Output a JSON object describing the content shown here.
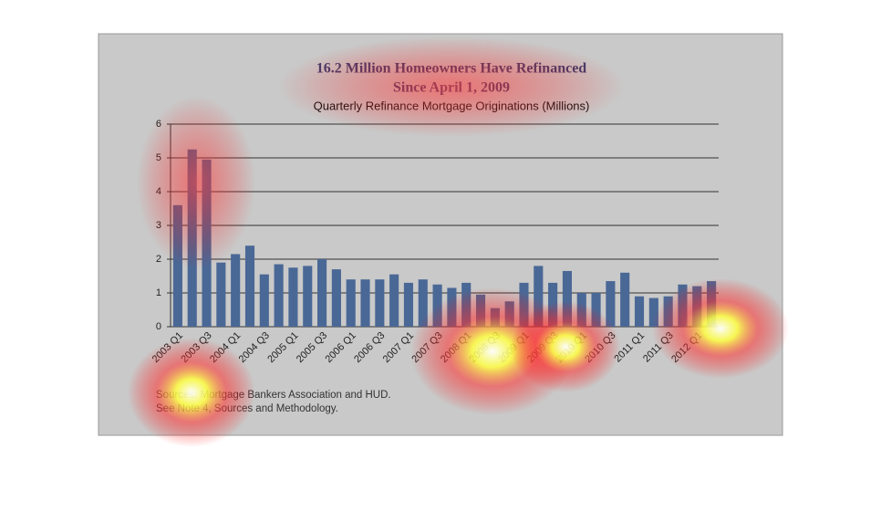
{
  "chart_data": {
    "type": "bar",
    "title": [
      "16.2 Million Homeowners Have Refinanced",
      "Since April 1, 2009"
    ],
    "subtitle": "Quarterly Refinance Mortgage Originations (Millions)",
    "notes": [
      "Sources:  Mortgage Bankers Association and HUD.",
      "See Note 4, Sources and Methodology."
    ],
    "categories": [
      "2003 Q1",
      null,
      "2003 Q3",
      null,
      "2004 Q1",
      null,
      "2004 Q3",
      null,
      "2005 Q1",
      null,
      "2005 Q3",
      null,
      "2006 Q1",
      null,
      "2006 Q3",
      null,
      "2007 Q1",
      null,
      "2007 Q3",
      null,
      "2008 Q1",
      null,
      "2008 Q3",
      null,
      "2009 Q1",
      null,
      "2009 Q3",
      null,
      "2010 Q1",
      null,
      "2010 Q3",
      null,
      "2011 Q1",
      null,
      "2011 Q3",
      null,
      "2012 Q1",
      null
    ],
    "values": [
      3.6,
      5.25,
      4.95,
      1.9,
      2.15,
      2.4,
      1.55,
      1.85,
      1.75,
      1.8,
      2.0,
      1.7,
      1.4,
      1.4,
      1.4,
      1.55,
      1.3,
      1.4,
      1.25,
      1.15,
      1.3,
      0.95,
      0.55,
      0.75,
      1.3,
      1.8,
      1.3,
      1.65,
      1.0,
      1.0,
      1.35,
      1.6,
      0.9,
      0.85,
      0.9,
      1.25,
      1.2,
      1.35
    ],
    "color": "#4a6896",
    "ylim": [
      0,
      6
    ],
    "yticks": [
      0,
      1,
      2,
      3,
      4,
      5,
      6
    ],
    "grid": true
  }
}
